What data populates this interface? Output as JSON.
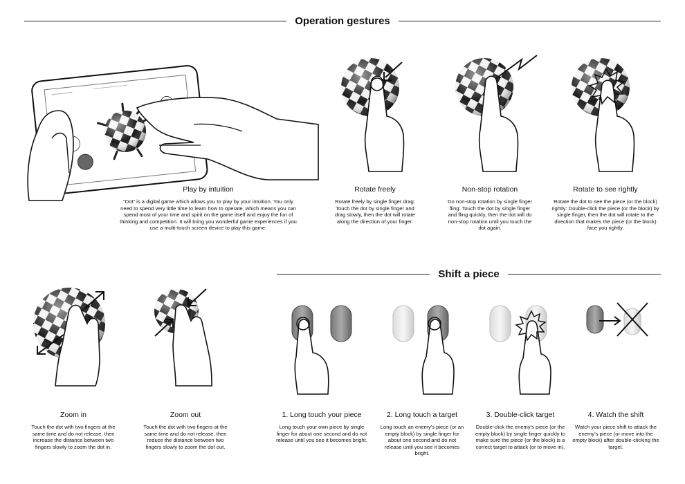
{
  "headers": {
    "operation": "Operation gestures",
    "shift": "Shift a piece"
  },
  "sections": {
    "intuition": {
      "title": "Play by intuition",
      "desc": "“Dot” is a digital game which allows you to play by your intuition. You only need to spend very little time to learn how to operate, which means you can spend most of your time and spirit on the game itself and enjoy the fun of thinking and competition. It will bring you wonderful game experiences if you use a multi-touch screen device to play this game."
    },
    "rotate": {
      "title": "Rotate freely",
      "desc": "Rotate freely by single finger drag: Touch the dot by single finger and drag slowly, then the dot will rotate along the direction of your finger."
    },
    "nonstop": {
      "title": "Non-stop rotation",
      "desc": "Do non-stop rotation by single finger fling: Touch the dot by single finger and fling quickly, then the dot will do non-stop rotation until you touch the dot again."
    },
    "rightly": {
      "title": "Rotate to see rightly",
      "desc": "Rotate the dot to see the piece (or the block) rightly: Double-click the piece (or the block) by single finger, then the dot will rotate to the direction that makes the piece (or the block) face you rightly."
    },
    "zoomin": {
      "title": "Zoom in",
      "desc": "Touch the dot with two fingers at the same time and do not release, then increase the distance between two fingers slowly to zoom the dot in."
    },
    "zoomout": {
      "title": "Zoom out",
      "desc": "Touch the dot with two fingers at the same time and do not release, then reduce the distance between two fingers slowly to zoom the dot out."
    },
    "step1": {
      "title": "1. Long touch your piece",
      "desc": "Long touch your own piece by single finger for about one second and do not release until you see it becomes bright."
    },
    "step2": {
      "title": "2. Long touch a target",
      "desc": "Long touch an enemy's piece (or an empty block) by single finger for about one second and do not release until you see it becomes bright."
    },
    "step3": {
      "title": "3. Double-click target",
      "desc": "Double-click the enemy's piece (or the empty block) by single finger quickly to make sure the piece (or the block) is a correct target to attack (or to move in)."
    },
    "step4": {
      "title": "4. Watch the shift",
      "desc": "Watch your piece shift to attack the enemy's piece (or move into the empty block) after double-clicking the target."
    }
  }
}
